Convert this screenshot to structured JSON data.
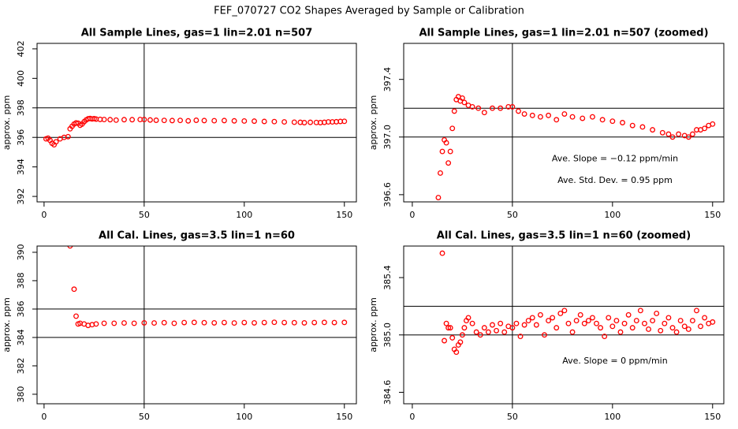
{
  "title": "FEF_070727  CO2 Shapes Averaged by Sample or Calibration",
  "chart_data": [
    {
      "type": "scatter",
      "title": "All Sample Lines, gas=1 lin=2.01 n=507",
      "y_label": "approx. ppm",
      "color": "#ff0000",
      "xlim": [
        -3.5,
        156
      ],
      "ylim": [
        391.63,
        402.37
      ],
      "xticks": [
        0,
        50,
        100,
        150
      ],
      "yticks": [
        392,
        394,
        396,
        398,
        400,
        402
      ],
      "hlines": [
        396,
        398
      ],
      "vline": 50,
      "annotations": [],
      "x": [
        1,
        2,
        3,
        4,
        5,
        6,
        8,
        10,
        12,
        13,
        14,
        15,
        16,
        17,
        18,
        19,
        20,
        21,
        22,
        23,
        24,
        25,
        26,
        28,
        30,
        33,
        36,
        40,
        44,
        48,
        50,
        53,
        56,
        60,
        64,
        68,
        72,
        76,
        80,
        85,
        90,
        95,
        100,
        105,
        110,
        115,
        120,
        125,
        128,
        130,
        133,
        136,
        138,
        140,
        142,
        144,
        146,
        148,
        150
      ],
      "values": [
        395.9,
        395.95,
        395.8,
        395.6,
        395.5,
        395.7,
        395.9,
        396.0,
        396.05,
        396.58,
        396.75,
        396.9,
        396.98,
        396.96,
        396.82,
        396.9,
        397.06,
        397.18,
        397.26,
        397.28,
        397.25,
        397.27,
        397.24,
        397.22,
        397.21,
        397.2,
        397.17,
        397.2,
        397.2,
        397.21,
        397.21,
        397.18,
        397.16,
        397.15,
        397.14,
        397.15,
        397.12,
        397.16,
        397.14,
        397.13,
        397.14,
        397.12,
        397.11,
        397.1,
        397.08,
        397.07,
        397.05,
        397.03,
        397.02,
        397.0,
        397.02,
        397.01,
        397.0,
        397.02,
        397.05,
        397.05,
        397.06,
        397.08,
        397.09
      ]
    },
    {
      "type": "scatter",
      "title": "All Sample Lines, gas=1 lin=2.01 n=507 (zoomed)",
      "y_label": "approx. ppm",
      "color": "#ff0000",
      "xlim": [
        -4.3,
        155.6
      ],
      "ylim": [
        396.55,
        397.65
      ],
      "xticks": [
        0,
        50,
        100,
        150
      ],
      "yticks": [
        396.6,
        {
          "value": 397,
          "label": "397.0"
        },
        397.4
      ],
      "hlines": [
        397,
        397.2
      ],
      "vline": 50,
      "annotations": [
        "Ave. Slope =  −0.12  ppm/min",
        "Ave. Std. Dev. =  0.95  ppm"
      ],
      "x": [
        13,
        14,
        15,
        16,
        17,
        18,
        19,
        20,
        21,
        22,
        23,
        24,
        25,
        26,
        28,
        30,
        33,
        36,
        40,
        44,
        48,
        50,
        53,
        56,
        60,
        64,
        68,
        72,
        76,
        80,
        85,
        90,
        95,
        100,
        105,
        110,
        115,
        120,
        125,
        128,
        130,
        133,
        136,
        138,
        140,
        142,
        144,
        146,
        148,
        150
      ],
      "values": [
        396.58,
        396.75,
        396.9,
        396.98,
        396.96,
        396.82,
        396.9,
        397.06,
        397.18,
        397.26,
        397.28,
        397.25,
        397.27,
        397.24,
        397.22,
        397.21,
        397.2,
        397.17,
        397.2,
        397.2,
        397.21,
        397.21,
        397.18,
        397.16,
        397.15,
        397.14,
        397.15,
        397.12,
        397.16,
        397.14,
        397.13,
        397.14,
        397.12,
        397.11,
        397.1,
        397.08,
        397.07,
        397.05,
        397.03,
        397.02,
        397.0,
        397.02,
        397.01,
        397.0,
        397.02,
        397.05,
        397.05,
        397.06,
        397.08,
        397.09
      ]
    },
    {
      "type": "scatter",
      "title": "All Cal. Lines, gas=3.5 lin=1 n=60",
      "y_label": "approx. ppm",
      "color": "#ff0000",
      "xlim": [
        -3.5,
        156
      ],
      "ylim": [
        379.33,
        390.44
      ],
      "xticks": [
        0,
        50,
        100,
        150
      ],
      "yticks": [
        380,
        382,
        384,
        386,
        388,
        390
      ],
      "hlines": [
        384,
        386
      ],
      "vline": 50,
      "annotations": [],
      "x": [
        13,
        15,
        16,
        17,
        18,
        20,
        22,
        24,
        26,
        30,
        35,
        40,
        45,
        50,
        55,
        60,
        65,
        70,
        75,
        80,
        85,
        90,
        95,
        100,
        105,
        110,
        115,
        120,
        125,
        130,
        135,
        140,
        145,
        150
      ],
      "values": [
        390.45,
        387.4,
        385.5,
        384.95,
        385.0,
        384.95,
        384.85,
        384.9,
        384.95,
        385.0,
        385.0,
        385.02,
        385.0,
        385.03,
        385.02,
        385.04,
        385.0,
        385.05,
        385.06,
        385.04,
        385.03,
        385.05,
        385.02,
        385.05,
        385.03,
        385.05,
        385.07,
        385.05,
        385.04,
        385.03,
        385.05,
        385.06,
        385.05,
        385.06
      ]
    },
    {
      "type": "scatter",
      "title": "All Cal. Lines, gas=3.5 lin=1 n=60 (zoomed)",
      "y_label": "approx. ppm",
      "color": "#ff0000",
      "xlim": [
        -4.3,
        155.6
      ],
      "ylim": [
        384.52,
        385.62
      ],
      "xticks": [
        0,
        50,
        100,
        150
      ],
      "yticks": [
        384.6,
        {
          "value": 385,
          "label": "385.0"
        },
        385.4
      ],
      "hlines": [
        385,
        385.2
      ],
      "vline": 50,
      "annotations": [
        "Ave. Slope =  0  ppm/min"
      ],
      "x": [
        15,
        16,
        17,
        18,
        19,
        20,
        21,
        22,
        23,
        24,
        25,
        26,
        27,
        28,
        30,
        32,
        34,
        36,
        38,
        40,
        42,
        44,
        46,
        48,
        50,
        52,
        54,
        56,
        58,
        60,
        62,
        64,
        66,
        68,
        70,
        72,
        74,
        76,
        78,
        80,
        82,
        84,
        86,
        88,
        90,
        92,
        94,
        96,
        98,
        100,
        102,
        104,
        106,
        108,
        110,
        112,
        114,
        116,
        118,
        120,
        122,
        124,
        126,
        128,
        130,
        132,
        134,
        136,
        138,
        140,
        142,
        144,
        146,
        148,
        150
      ],
      "values": [
        385.57,
        384.96,
        385.08,
        385.05,
        385.05,
        384.98,
        384.9,
        384.88,
        384.93,
        384.95,
        385.0,
        385.05,
        385.1,
        385.12,
        385.08,
        385.02,
        385.0,
        385.05,
        385.02,
        385.07,
        385.03,
        385.08,
        385.02,
        385.06,
        385.05,
        385.08,
        384.99,
        385.07,
        385.1,
        385.12,
        385.07,
        385.14,
        385.0,
        385.1,
        385.12,
        385.05,
        385.15,
        385.17,
        385.08,
        385.02,
        385.1,
        385.14,
        385.08,
        385.1,
        385.12,
        385.08,
        385.05,
        384.99,
        385.12,
        385.06,
        385.1,
        385.02,
        385.08,
        385.14,
        385.05,
        385.1,
        385.17,
        385.08,
        385.04,
        385.1,
        385.15,
        385.03,
        385.08,
        385.12,
        385.05,
        385.02,
        385.1,
        385.06,
        385.04,
        385.1,
        385.17,
        385.06,
        385.12,
        385.08,
        385.09
      ]
    }
  ]
}
